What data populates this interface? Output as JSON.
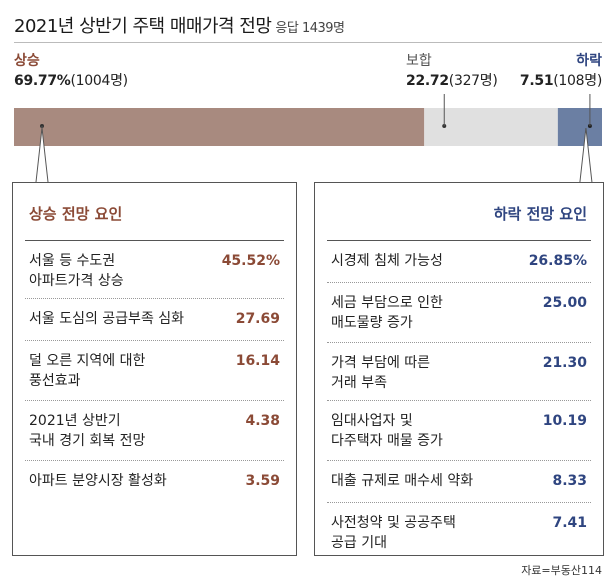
{
  "title": "2021년 상반기 주택 매매가격 전망",
  "subtitle": "응답 1439명",
  "colors": {
    "up": "#a88a7f",
    "up_text": "#8b4a36",
    "hold": "#e0e0e0",
    "down": "#6b7fa3",
    "down_text": "#2f4580"
  },
  "chart_data": {
    "type": "bar",
    "stacked": true,
    "orientation": "horizontal",
    "categories": [
      "상승",
      "보합",
      "하락"
    ],
    "values": [
      69.77,
      22.72,
      7.51
    ],
    "counts": [
      1004,
      327,
      108
    ],
    "value_labels": [
      "69.77%",
      "22.72",
      "7.51"
    ],
    "count_labels": [
      "(1004명)",
      "(327명)",
      "(108명)"
    ]
  },
  "up_panel": {
    "title": "상승 전망 요인",
    "rows": [
      {
        "label": "서울 등 수도권\n아파트가격 상승",
        "value": "45.52%"
      },
      {
        "label": "서울 도심의 공급부족 심화",
        "value": "27.69"
      },
      {
        "label": "덜 오른 지역에 대한\n풍선효과",
        "value": "16.14"
      },
      {
        "label": "2021년 상반기\n국내 경기 회복 전망",
        "value": "4.38"
      },
      {
        "label": "아파트 분양시장 활성화",
        "value": "3.59"
      }
    ]
  },
  "down_panel": {
    "title": "하락 전망 요인",
    "rows": [
      {
        "label": "시경제 침체 가능성",
        "value": "26.85%"
      },
      {
        "label": "세금 부담으로 인한\n매도물량 증가",
        "value": "25.00"
      },
      {
        "label": "가격 부담에 따른\n거래 부족",
        "value": "21.30"
      },
      {
        "label": "임대사업자 및\n다주택자 매물 증가",
        "value": "10.19"
      },
      {
        "label": "대출 규제로 매수세 약화",
        "value": "8.33"
      },
      {
        "label": "사전청약 및 공공주택\n공급 기대",
        "value": "7.41"
      }
    ]
  },
  "source": "자료=부동산114"
}
